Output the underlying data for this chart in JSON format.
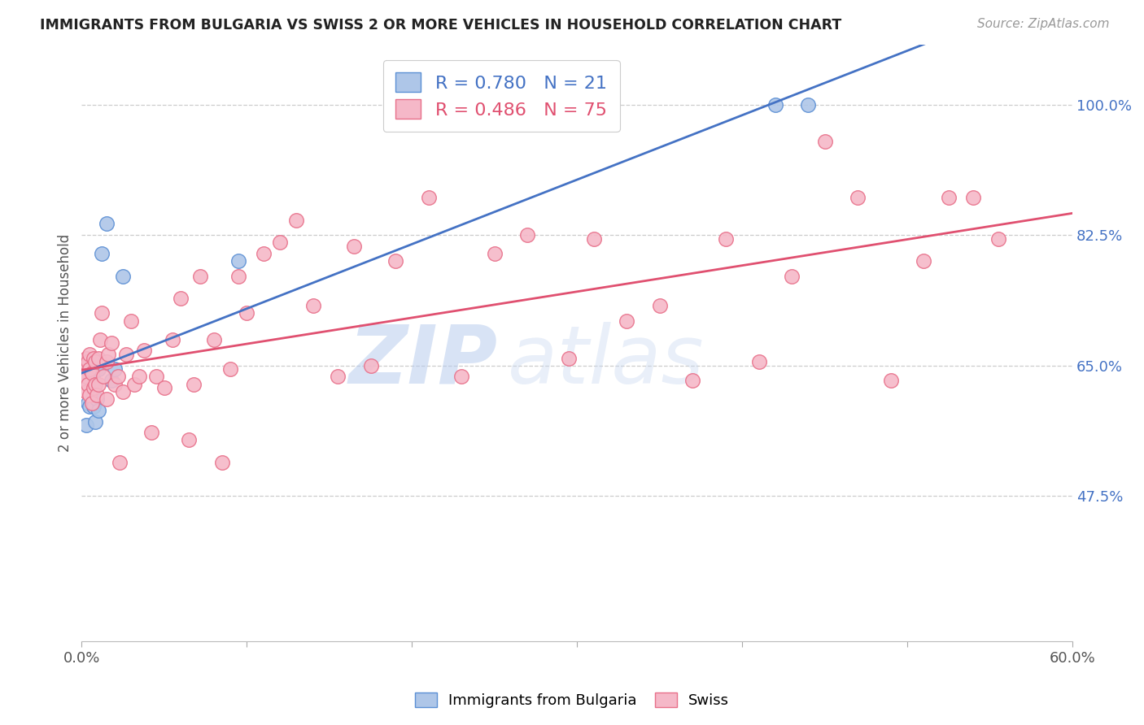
{
  "title": "IMMIGRANTS FROM BULGARIA VS SWISS 2 OR MORE VEHICLES IN HOUSEHOLD CORRELATION CHART",
  "source": "Source: ZipAtlas.com",
  "ylabel": "2 or more Vehicles in Household",
  "ytick_labels": [
    "47.5%",
    "65.0%",
    "82.5%",
    "100.0%"
  ],
  "ytick_values": [
    0.475,
    0.65,
    0.825,
    1.0
  ],
  "xmin": 0.0,
  "xmax": 0.6,
  "ymin": 0.28,
  "ymax": 1.08,
  "legend_blue_r": "R = 0.780",
  "legend_blue_n": "N = 21",
  "legend_pink_r": "R = 0.486",
  "legend_pink_n": "N = 75",
  "blue_label": "Immigrants from Bulgaria",
  "pink_label": "Swiss",
  "blue_fill_color": "#aec6e8",
  "pink_fill_color": "#f5b8c8",
  "blue_edge_color": "#5b8fd4",
  "pink_edge_color": "#e8708a",
  "blue_line_color": "#4472c4",
  "pink_line_color": "#e05070",
  "watermark_zip": "ZIP",
  "watermark_atlas": "atlas",
  "blue_points_x": [
    0.003,
    0.004,
    0.005,
    0.005,
    0.006,
    0.006,
    0.007,
    0.007,
    0.008,
    0.008,
    0.009,
    0.01,
    0.01,
    0.012,
    0.015,
    0.018,
    0.02,
    0.025,
    0.095,
    0.42,
    0.44
  ],
  "blue_points_y": [
    0.57,
    0.6,
    0.595,
    0.63,
    0.605,
    0.655,
    0.595,
    0.63,
    0.575,
    0.645,
    0.605,
    0.59,
    0.645,
    0.8,
    0.84,
    0.63,
    0.645,
    0.77,
    0.79,
    1.0,
    1.0
  ],
  "pink_points_x": [
    0.002,
    0.002,
    0.003,
    0.003,
    0.003,
    0.004,
    0.004,
    0.005,
    0.005,
    0.005,
    0.006,
    0.006,
    0.007,
    0.007,
    0.008,
    0.008,
    0.009,
    0.01,
    0.01,
    0.011,
    0.012,
    0.013,
    0.015,
    0.015,
    0.016,
    0.018,
    0.02,
    0.022,
    0.023,
    0.025,
    0.027,
    0.03,
    0.032,
    0.035,
    0.038,
    0.042,
    0.045,
    0.05,
    0.055,
    0.06,
    0.065,
    0.068,
    0.072,
    0.08,
    0.085,
    0.09,
    0.095,
    0.1,
    0.11,
    0.12,
    0.13,
    0.14,
    0.155,
    0.165,
    0.175,
    0.19,
    0.21,
    0.23,
    0.25,
    0.27,
    0.295,
    0.31,
    0.33,
    0.35,
    0.37,
    0.39,
    0.41,
    0.43,
    0.45,
    0.47,
    0.49,
    0.51,
    0.525,
    0.54,
    0.555
  ],
  "pink_points_y": [
    0.63,
    0.655,
    0.615,
    0.635,
    0.66,
    0.625,
    0.655,
    0.61,
    0.645,
    0.665,
    0.6,
    0.64,
    0.62,
    0.66,
    0.625,
    0.655,
    0.61,
    0.625,
    0.66,
    0.685,
    0.72,
    0.635,
    0.605,
    0.655,
    0.665,
    0.68,
    0.625,
    0.635,
    0.52,
    0.615,
    0.665,
    0.71,
    0.625,
    0.635,
    0.67,
    0.56,
    0.635,
    0.62,
    0.685,
    0.74,
    0.55,
    0.625,
    0.77,
    0.685,
    0.52,
    0.645,
    0.77,
    0.72,
    0.8,
    0.815,
    0.845,
    0.73,
    0.635,
    0.81,
    0.65,
    0.79,
    0.875,
    0.635,
    0.8,
    0.825,
    0.66,
    0.82,
    0.71,
    0.73,
    0.63,
    0.82,
    0.655,
    0.77,
    0.95,
    0.875,
    0.63,
    0.79,
    0.875,
    0.875,
    0.82
  ]
}
